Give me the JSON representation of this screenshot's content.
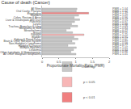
{
  "chart_data": {
    "type": "bar",
    "orientation": "horizontal",
    "title": "Cause of death (Cancer)",
    "x_label": "Proportionate Mortality Ratio (PMR)",
    "categories": [
      "All Sites",
      "Oral Cavity, Pharynx",
      "Esophagus",
      "Stomach",
      "Colon, Rectum & Anus",
      "Liver & Intrahepatic Bile Duct",
      "Pancreas",
      "Larynx",
      "Trachea, Bronchus & Lung",
      "Melanoma of Skin",
      "Mesothelioma",
      "Breast",
      "Prostate",
      "Bladder",
      "Kidney & Renal Pelvis",
      "Brain & Other Nervous System",
      "Non-Hodgkin's Lymphoma",
      "Hodgkin's Disease",
      "Multiple Myeloma",
      "Leukemia",
      "Other Lymphatic & Hematopoietic",
      "All Other Malignant Neoplasms"
    ],
    "series": [
      {
        "name": "Non-sig",
        "color": "#c8c8c8",
        "values": [
          1.04,
          1.02,
          null,
          1.09,
          0.96,
          1.12,
          0.97,
          0.88,
          1.06,
          0.84,
          0.72,
          0.91,
          null,
          0.95,
          1.07,
          0.89,
          0.98,
          0.77,
          1.02,
          0.94,
          0.86,
          1.01
        ],
        "value_labels": [
          "PMR = 1.04",
          "PMR = 1.02",
          null,
          "PMR = 1.09",
          "PMR = 0.96",
          "PMR = 1.12",
          "PMR = 0.97",
          "PMR = 0.88",
          "PMR = 1.06",
          "PMR = 0.84",
          "PMR = 0.72",
          "PMR = 0.91",
          null,
          "PMR = 0.95",
          "PMR = 1.07",
          "PMR = 0.89",
          "PMR = 0.98",
          "PMR = 0.77",
          "PMR = 1.02",
          "PMR = 0.94",
          "PMR = 0.86",
          "PMR = 1.01"
        ]
      },
      {
        "name": "p < 0.05",
        "color": "#f7b6b6",
        "values": [
          null,
          null,
          null,
          null,
          null,
          null,
          null,
          null,
          null,
          null,
          null,
          null,
          1.25,
          null,
          null,
          null,
          null,
          null,
          null,
          null,
          null,
          null
        ],
        "value_labels": [
          null,
          null,
          null,
          null,
          null,
          null,
          null,
          null,
          null,
          null,
          null,
          null,
          "PMR = 1.25",
          null,
          null,
          null,
          null,
          null,
          null,
          null,
          null,
          null
        ]
      },
      {
        "name": "p < 0.01",
        "color": "#f08080",
        "values": [
          null,
          null,
          1.39,
          null,
          null,
          null,
          null,
          null,
          null,
          null,
          null,
          null,
          null,
          null,
          null,
          null,
          null,
          null,
          null,
          null,
          null,
          null
        ],
        "value_labels": [
          null,
          null,
          "PMR = 1.39",
          null,
          null,
          null,
          null,
          null,
          null,
          null,
          null,
          null,
          null,
          null,
          null,
          null,
          null,
          null,
          null,
          null,
          null,
          null
        ]
      }
    ],
    "xlim": [
      0,
      2
    ],
    "xticks": [
      0,
      0.5,
      1,
      1.5,
      2
    ],
    "legend": "bottom",
    "grid": false
  }
}
